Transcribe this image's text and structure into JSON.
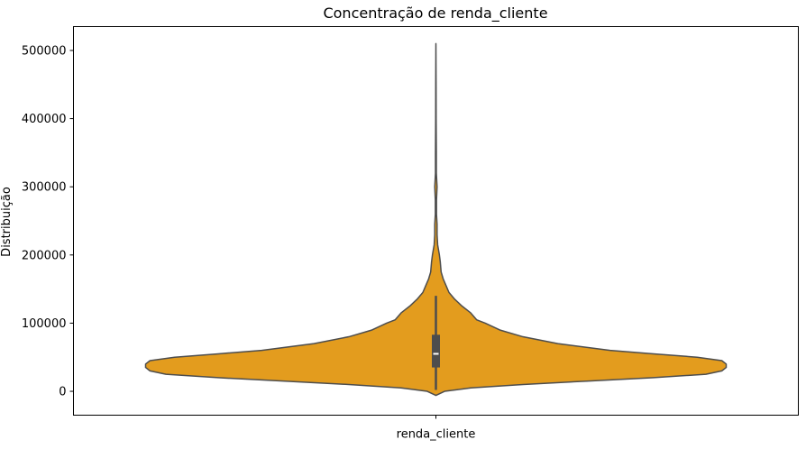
{
  "chart_data": {
    "type": "violin",
    "title": "Concentração de renda_cliente",
    "xlabel": "",
    "ylabel": "Distribuição",
    "categories": [
      "renda_cliente"
    ],
    "ylim": [
      -35000,
      535000
    ],
    "yticks": [
      0,
      100000,
      200000,
      300000,
      400000,
      500000
    ],
    "ytick_labels": [
      "0",
      "100000",
      "200000",
      "300000",
      "400000",
      "500000"
    ],
    "grid": false,
    "legend": "none",
    "colors": {
      "fill": "#e39c1e",
      "outline": "#4d4d4d"
    },
    "density_profile": [
      {
        "y": -6000,
        "w": 0.0
      },
      {
        "y": 0,
        "w": 0.03
      },
      {
        "y": 5000,
        "w": 0.12
      },
      {
        "y": 10000,
        "w": 0.3
      },
      {
        "y": 15000,
        "w": 0.52
      },
      {
        "y": 20000,
        "w": 0.75
      },
      {
        "y": 25000,
        "w": 0.93
      },
      {
        "y": 30000,
        "w": 0.985
      },
      {
        "y": 35000,
        "w": 1.0
      },
      {
        "y": 40000,
        "w": 1.0
      },
      {
        "y": 45000,
        "w": 0.985
      },
      {
        "y": 50000,
        "w": 0.9
      },
      {
        "y": 55000,
        "w": 0.75
      },
      {
        "y": 60000,
        "w": 0.6
      },
      {
        "y": 70000,
        "w": 0.42
      },
      {
        "y": 80000,
        "w": 0.3
      },
      {
        "y": 90000,
        "w": 0.22
      },
      {
        "y": 100000,
        "w": 0.17
      },
      {
        "y": 105000,
        "w": 0.14
      },
      {
        "y": 115000,
        "w": 0.12
      },
      {
        "y": 125000,
        "w": 0.09
      },
      {
        "y": 135000,
        "w": 0.065
      },
      {
        "y": 145000,
        "w": 0.045
      },
      {
        "y": 155000,
        "w": 0.035
      },
      {
        "y": 165000,
        "w": 0.025
      },
      {
        "y": 175000,
        "w": 0.018
      },
      {
        "y": 190000,
        "w": 0.015
      },
      {
        "y": 200000,
        "w": 0.012
      },
      {
        "y": 215000,
        "w": 0.006
      },
      {
        "y": 230000,
        "w": 0.004
      },
      {
        "y": 245000,
        "w": 0.004
      },
      {
        "y": 260000,
        "w": 0.002
      },
      {
        "y": 280000,
        "w": 0.002
      },
      {
        "y": 300000,
        "w": 0.004
      },
      {
        "y": 320000,
        "w": 0.0015
      },
      {
        "y": 350000,
        "w": 0.0015
      },
      {
        "y": 400000,
        "w": 0.0008
      },
      {
        "y": 450000,
        "w": 0.0006
      },
      {
        "y": 510000,
        "w": 0.0
      }
    ],
    "box": {
      "q1": 35000,
      "median": 55000,
      "q3": 83000,
      "whisker_low": 2000,
      "whisker_high": 140000
    }
  }
}
